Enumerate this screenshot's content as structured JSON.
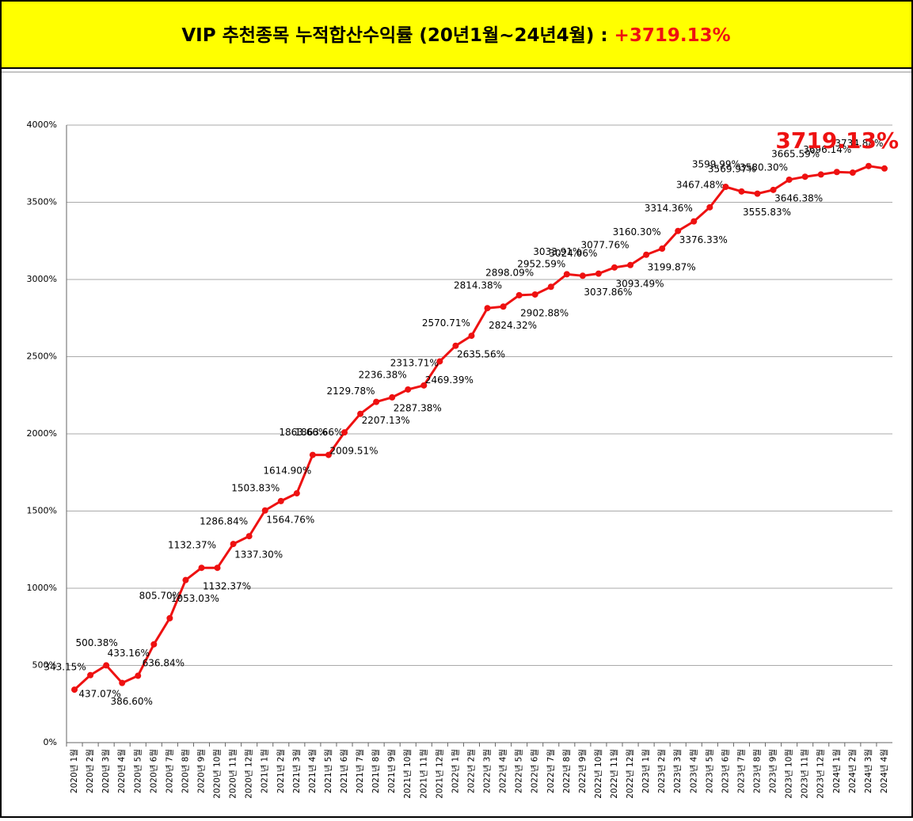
{
  "chart_data": {
    "type": "line",
    "title": "VIP 추천종목 누적합산수익률 (20년1월~24년4월) : ",
    "title_highlight": "+3719.13%",
    "categories": [
      "2020년 1월",
      "2020년 2월",
      "2020년 3월",
      "2020년 4월",
      "2020년 5월",
      "2020년 6월",
      "2020년 7월",
      "2020년 8월",
      "2020년 9월",
      "2020년 10월",
      "2020년 11월",
      "2020년 12월",
      "2021년 1월",
      "2021년 2월",
      "2021년 3월",
      "2021년 4월",
      "2021년 5월",
      "2021년 6월",
      "2021년 7월",
      "2021년 8월",
      "2021년 9월",
      "2021년 10월",
      "2021년 11월",
      "2021년 12월",
      "2022년 1월",
      "2022년 2월",
      "2022년 3월",
      "2022년 4월",
      "2022년 5월",
      "2022년 6월",
      "2022년 7월",
      "2022년 8월",
      "2022년 9월",
      "2022년 10월",
      "2022년 11월",
      "2022년 12월",
      "2023년 1월",
      "2023년 2월",
      "2023년 3월",
      "2023년 4월",
      "2023년 5월",
      "2023년 6월",
      "2023년 7월",
      "2023년 8월",
      "2023년 9월",
      "2023년 10월",
      "2023년 11월",
      "2023년 12월",
      "2024년 1월",
      "2024년 2월",
      "2024년 3월",
      "2024년 4월"
    ],
    "series": [
      {
        "name": "누적합산수익률",
        "color": "#ee1111",
        "values": [
          343.15,
          437.07,
          500.38,
          386.6,
          433.16,
          636.84,
          805.7,
          1053.03,
          1132.37,
          1132.37,
          1286.84,
          1337.3,
          1503.83,
          1564.76,
          1614.9,
          1863.66,
          1863.66,
          2009.51,
          2129.78,
          2207.13,
          2236.38,
          2287.38,
          2313.71,
          2469.39,
          2570.71,
          2635.56,
          2814.38,
          2824.32,
          2898.09,
          2902.88,
          2952.59,
          3033.91,
          3024.06,
          3037.86,
          3077.76,
          3093.49,
          3160.3,
          3199.87,
          3314.36,
          3376.33,
          3467.48,
          3599.99,
          3569.97,
          3555.83,
          3580.3,
          3646.38,
          3665.59,
          3680,
          3696.14,
          3692,
          3734.88,
          3719.13
        ],
        "value_labels": [
          "343.15%",
          "437.07%",
          "500.38%",
          "386.60%",
          "433.16%",
          "636.84%",
          "805.70%",
          "1053.03%",
          "1132.37%",
          "1132.37%",
          "1286.84%",
          "1337.30%",
          "1503.83%",
          "1564.76%",
          "1614.90%",
          "1863.66%",
          "1863.66%",
          "2009.51%",
          "2129.78%",
          "2207.13%",
          "2236.38%",
          "2287.38%",
          "2313.71%",
          "2469.39%",
          "2570.71%",
          "2635.56%",
          "2814.38%",
          "2824.32%",
          "2898.09%",
          "2902.88%",
          "2952.59%",
          "3033.91%",
          "3024.06%",
          "3037.86%",
          "3077.76%",
          "3093.49%",
          "3160.30%",
          "3199.87%",
          "3314.36%",
          "3376.33%",
          "3467.48%",
          "3599.99%",
          "3569.97%",
          "3555.83%",
          "3580.30%",
          "3646.38%",
          "3665.59%",
          null,
          "3696.14%",
          null,
          "3734.88%",
          "3719.13%"
        ]
      }
    ],
    "ylim": [
      0,
      4000
    ],
    "yticks": [
      {
        "value": 0,
        "label": "0%"
      },
      {
        "value": 500,
        "label": "500%"
      },
      {
        "value": 1000,
        "label": "1000%"
      },
      {
        "value": 1500,
        "label": "1500%"
      },
      {
        "value": 2000,
        "label": "2000%"
      },
      {
        "value": 2500,
        "label": "2500%"
      },
      {
        "value": 3000,
        "label": "3000%"
      },
      {
        "value": 3500,
        "label": "3500%"
      },
      {
        "value": 4000,
        "label": "4000%"
      }
    ],
    "grid": true
  }
}
